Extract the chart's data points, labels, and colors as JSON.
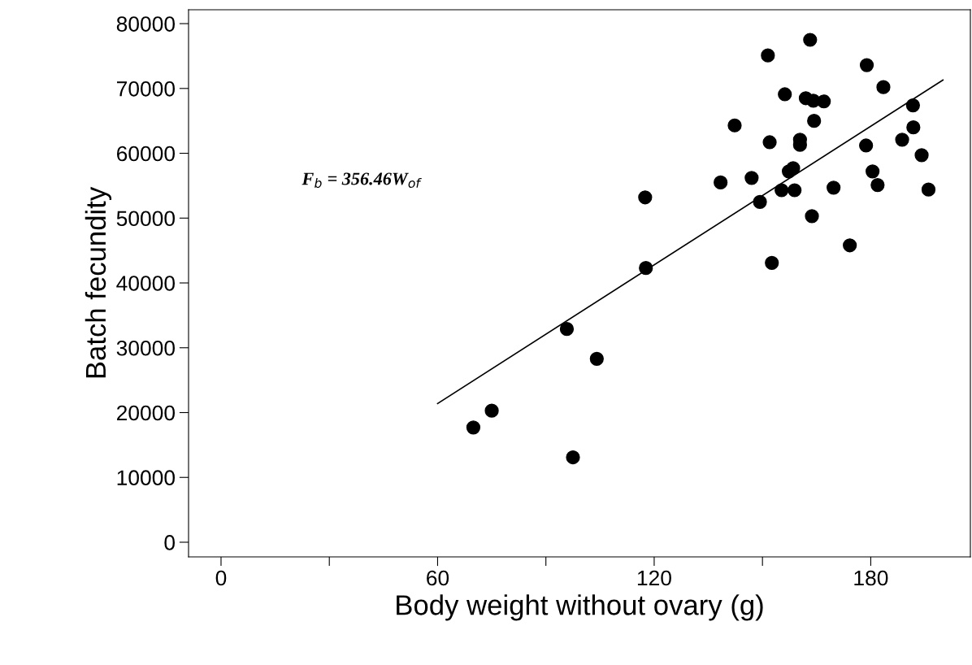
{
  "chart_data": {
    "type": "scatter",
    "xlabel": "Body weight without ovary (g)",
    "ylabel": "Batch fecundity",
    "annotations": [
      "F$_{b}$ = 356.46W$_{of}$"
    ],
    "xlim": [
      -9,
      207.6
    ],
    "ylim": [
      -2260,
      82140
    ],
    "xticks": [
      0,
      {
        "value": 30,
        "label": null
      },
      60,
      {
        "value": 90,
        "label": null
      },
      120,
      {
        "value": 150,
        "label": null
      },
      180
    ],
    "yticks": [
      0,
      10000,
      20000,
      30000,
      40000,
      50000,
      60000,
      70000,
      80000
    ],
    "grid": false,
    "marker": "circle",
    "series": [
      {
        "color": "#000000",
        "x": [
          163.2,
          151.5,
          178.9,
          183.5,
          156.2,
          162.0,
          164.1,
          167.0,
          191.7,
          142.3,
          164.3,
          191.8,
          188.7,
          152.0,
          160.4,
          160.4,
          178.7,
          194.1,
          158.5,
          157.3,
          180.5,
          147.0,
          138.4,
          181.9,
          169.7,
          155.3,
          158.9,
          196.0,
          149.3,
          163.7,
          174.2,
          152.6,
          117.7,
          95.8,
          104.1,
          75.0,
          69.9,
          97.5,
          117.5
        ],
        "values": [
          77500,
          75100,
          73600,
          70200,
          69100,
          68500,
          68100,
          68000,
          67400,
          64300,
          65000,
          64000,
          62100,
          61700,
          62100,
          61300,
          61200,
          59700,
          57700,
          57200,
          57200,
          56200,
          55500,
          55100,
          54700,
          54300,
          54300,
          54400,
          52500,
          50300,
          45800,
          43100,
          42300,
          32900,
          28300,
          20300,
          17700,
          13100,
          53200
        ]
      },
      {
        "type": "line",
        "color": "#000000",
        "marker": "none",
        "x": [
          60,
          200
        ],
        "values": [
          21400,
          71300
        ]
      }
    ]
  }
}
